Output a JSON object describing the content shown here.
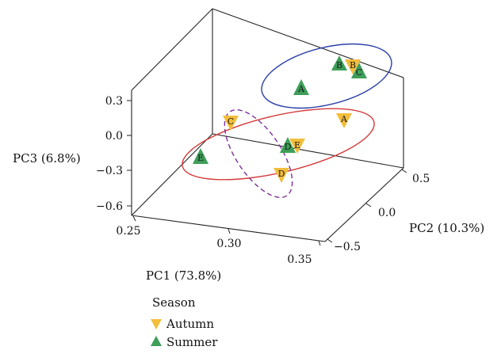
{
  "chart_data": {
    "type": "scatter",
    "subtype": "3d",
    "title": "",
    "axes": {
      "x": {
        "label": "PC1 (73.8%)",
        "range": [
          0.25,
          0.35
        ],
        "ticks": [
          "0.25",
          "0.30",
          "0.35"
        ]
      },
      "y": {
        "label": "PC2 (10.3%)",
        "range": [
          -0.5,
          0.5
        ],
        "ticks": [
          "−0.5",
          "0.0",
          "0.5"
        ]
      },
      "z": {
        "label": "PC3 (6.8%)",
        "range": [
          -0.6,
          0.3
        ],
        "ticks": [
          "−0.6",
          "−0.3",
          "0.0",
          "0.3"
        ]
      }
    },
    "legend": {
      "title": "Season",
      "placement": "bottom-left",
      "items": [
        {
          "name": "Autumn",
          "marker": "triangle-down",
          "color": "#F2BE3B"
        },
        {
          "name": "Summer",
          "marker": "triangle-up",
          "color": "#3E9E58"
        }
      ]
    },
    "series": [
      {
        "name": "Autumn",
        "points": [
          {
            "label": "A",
            "pc1": 0.291,
            "pc2": 0.43,
            "pc3": 0.2
          },
          {
            "label": "B",
            "pc1": 0.321,
            "pc2": 0.4,
            "pc3": 0.55
          },
          {
            "label": "C",
            "pc1": 0.267,
            "pc2": 0.02,
            "pc3": 0.09
          },
          {
            "label": "D",
            "pc1": 0.321,
            "pc2": -0.16,
            "pc3": -0.15
          },
          {
            "label": "E",
            "pc1": 0.316,
            "pc2": 0.12,
            "pc3": 0.05
          }
        ]
      },
      {
        "name": "Summer",
        "points": [
          {
            "label": "A",
            "pc1": 0.285,
            "pc2": 0.31,
            "pc3": 0.32
          },
          {
            "label": "B",
            "pc1": 0.317,
            "pc2": 0.39,
            "pc3": 0.56
          },
          {
            "label": "C",
            "pc1": 0.318,
            "pc2": 0.49,
            "pc3": 0.52
          },
          {
            "label": "D",
            "pc1": 0.311,
            "pc2": 0.08,
            "pc3": 0.05
          },
          {
            "label": "E",
            "pc1": 0.292,
            "pc2": -0.42,
            "pc3": -0.02
          }
        ]
      }
    ],
    "group_ellipses": [
      {
        "color": "#2B3FA8",
        "style": "solid",
        "members": [
          "Autumn B",
          "Summer A",
          "Summer B",
          "Summer C"
        ]
      },
      {
        "color": "#D43A3A",
        "style": "solid",
        "members": [
          "Autumn A",
          "Autumn C",
          "Autumn E",
          "Summer D",
          "Summer E"
        ]
      },
      {
        "color": "#7B2F98",
        "style": "dashed",
        "members": [
          "Autumn C",
          "Autumn D"
        ]
      }
    ],
    "grid": false
  }
}
